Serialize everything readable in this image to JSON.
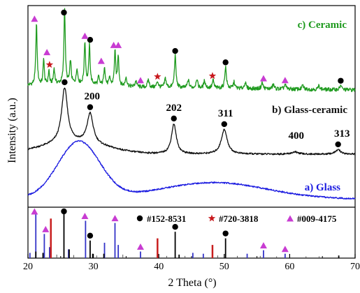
{
  "chart_data": {
    "type": "line",
    "xlabel": "2 Theta (°)",
    "ylabel": "Intensity (a.u.)",
    "xlim": [
      20,
      70
    ],
    "xticks": [
      20,
      30,
      40,
      50,
      60,
      70
    ],
    "colors": {
      "ceramic": "#1e9a1e",
      "glass_ceramic": "#111111",
      "glass": "#1b1be0",
      "phase_circle": "#000000",
      "phase_star": "#c8191e",
      "phase_triangle": "#c83cd2",
      "ref_blue": "#3434c8",
      "ref_red": "#c81e1e",
      "ref_gray": "#555555"
    },
    "series": [
      {
        "key": "ceramic",
        "name": "c) Ceramic",
        "profile": {
          "base_start": 0.06,
          "base_end": 0.01,
          "hump": {
            "center": 27,
            "width": 4.5,
            "height": 0.04
          },
          "peaks": [
            [
              21.3,
              0.8,
              0.12
            ],
            [
              22.4,
              0.35,
              0.1
            ],
            [
              23.2,
              0.18,
              0.1
            ],
            [
              24.0,
              0.2,
              0.12
            ],
            [
              25.6,
              1.0,
              0.12
            ],
            [
              26.5,
              0.3,
              0.12
            ],
            [
              27.5,
              0.2,
              0.12
            ],
            [
              28.7,
              0.55,
              0.12
            ],
            [
              29.4,
              0.5,
              0.12
            ],
            [
              30.8,
              0.1,
              0.12
            ],
            [
              31.7,
              0.25,
              0.12
            ],
            [
              32.5,
              0.1,
              0.12
            ],
            [
              33.3,
              0.45,
              0.12
            ],
            [
              33.8,
              0.4,
              0.12
            ],
            [
              35.0,
              0.12,
              0.15
            ],
            [
              36.5,
              0.08,
              0.15
            ],
            [
              38.4,
              0.1,
              0.15
            ],
            [
              39.8,
              0.08,
              0.15
            ],
            [
              41.0,
              0.12,
              0.15
            ],
            [
              42.5,
              0.42,
              0.14
            ],
            [
              44.5,
              0.1,
              0.15
            ],
            [
              45.8,
              0.12,
              0.15
            ],
            [
              47.0,
              0.1,
              0.15
            ],
            [
              48.3,
              0.1,
              0.15
            ],
            [
              50.2,
              0.28,
              0.15
            ],
            [
              51.5,
              0.08,
              0.15
            ],
            [
              53.2,
              0.08,
              0.15
            ],
            [
              55.8,
              0.08,
              0.15
            ],
            [
              57.5,
              0.06,
              0.15
            ],
            [
              59.3,
              0.06,
              0.15
            ],
            [
              62.0,
              0.05,
              0.15
            ],
            [
              64.5,
              0.05,
              0.15
            ],
            [
              67.8,
              0.06,
              0.15
            ]
          ],
          "scale": 110,
          "noise": 0.05
        },
        "markers": [
          {
            "x": 25.5,
            "type": "circle"
          },
          {
            "x": 29.5,
            "type": "circle"
          },
          {
            "x": 42.5,
            "type": "circle"
          },
          {
            "x": 50.2,
            "type": "circle"
          },
          {
            "x": 67.8,
            "type": "circle"
          },
          {
            "x": 21.0,
            "type": "triangle"
          },
          {
            "x": 22.9,
            "type": "triangle"
          },
          {
            "x": 28.7,
            "type": "triangle"
          },
          {
            "x": 31.2,
            "type": "triangle"
          },
          {
            "x": 33.1,
            "type": "triangle"
          },
          {
            "x": 33.8,
            "type": "triangle"
          },
          {
            "x": 37.2,
            "type": "triangle"
          },
          {
            "x": 56.0,
            "type": "triangle"
          },
          {
            "x": 59.3,
            "type": "triangle"
          },
          {
            "x": 23.3,
            "type": "star"
          },
          {
            "x": 39.8,
            "type": "star"
          },
          {
            "x": 48.2,
            "type": "star"
          }
        ]
      },
      {
        "key": "glass_ceramic",
        "name": "b) Glass-ceramic",
        "profile": {
          "base_start": 0.05,
          "base_end": 0.05,
          "hump": {
            "center": 27,
            "width": 5,
            "height": 0.22
          },
          "peaks": [
            [
              25.6,
              1.0,
              0.55
            ],
            [
              29.5,
              0.55,
              0.55
            ],
            [
              42.3,
              0.55,
              0.45
            ],
            [
              50.0,
              0.45,
              0.55
            ],
            [
              60.8,
              0.04,
              0.6
            ],
            [
              67.4,
              0.08,
              0.5
            ]
          ],
          "scale": 78,
          "noise": 0.03
        },
        "markers": [
          {
            "x": 25.6,
            "type": "circle"
          },
          {
            "x": 29.5,
            "type": "circle"
          },
          {
            "x": 42.3,
            "type": "circle"
          },
          {
            "x": 50.0,
            "type": "circle"
          },
          {
            "x": 67.4,
            "type": "circle"
          }
        ],
        "peak_labels": [
          {
            "x": 29.8,
            "text": "200"
          },
          {
            "x": 42.3,
            "text": "202"
          },
          {
            "x": 50.2,
            "text": "311"
          },
          {
            "x": 61.0,
            "text": "400"
          },
          {
            "x": 68.0,
            "text": "313"
          }
        ]
      },
      {
        "key": "glass",
        "name": "a) Glass",
        "profile": {
          "base_start": 0.04,
          "base_end": 0.02,
          "hump": {
            "center": 27.8,
            "width": 3.2,
            "height": 0.95
          },
          "hump2": {
            "center": 48.5,
            "width": 8,
            "height": 0.27
          },
          "peaks": [],
          "scale": 85,
          "noise": 0.025
        }
      }
    ],
    "reference_lines": {
      "circle_lines": [
        21.2,
        22.3,
        25.5,
        26.3,
        29.5,
        29.9,
        31.6,
        42.5,
        43.1,
        50.2,
        67.5
      ],
      "circle_heights": [
        0.15,
        0.12,
        1.0,
        0.2,
        0.4,
        0.1,
        0.1,
        0.6,
        0.08,
        0.45,
        0.06
      ],
      "blue_lines": [
        20.3,
        21.2,
        22.5,
        23.3,
        26.2,
        28.8,
        31.7,
        33.3,
        33.8,
        37.2,
        45.2,
        46.8,
        53.5,
        56.0,
        59.3
      ],
      "blue_heights": [
        0.12,
        1.0,
        0.55,
        0.25,
        0.2,
        0.85,
        0.35,
        0.8,
        0.3,
        0.15,
        0.12,
        0.1,
        0.1,
        0.18,
        0.1
      ],
      "red_lines": [
        23.5,
        39.8,
        48.2
      ],
      "red_heights": [
        0.9,
        0.45,
        0.3
      ],
      "gray_lines": [
        24.4,
        27.0,
        30.5,
        34.5,
        41.2,
        44.0,
        49.0,
        52.0,
        55.5,
        58.0,
        62.5,
        64.5
      ],
      "gray_heights": [
        0.08,
        0.07,
        0.06,
        0.08,
        0.05,
        0.05,
        0.06,
        0.05,
        0.05,
        0.04,
        0.04,
        0.04
      ],
      "markers": [
        {
          "x": 25.5,
          "type": "circle"
        },
        {
          "x": 29.5,
          "type": "circle"
        },
        {
          "x": 42.5,
          "type": "circle"
        },
        {
          "x": 50.2,
          "type": "circle"
        },
        {
          "x": 21.0,
          "type": "triangle"
        },
        {
          "x": 22.7,
          "type": "triangle"
        },
        {
          "x": 28.7,
          "type": "triangle"
        },
        {
          "x": 33.3,
          "type": "triangle"
        },
        {
          "x": 37.2,
          "type": "triangle"
        },
        {
          "x": 56.0,
          "type": "triangle"
        },
        {
          "x": 59.3,
          "type": "triangle"
        }
      ],
      "legend": [
        {
          "type": "circle",
          "label": "#152-8531"
        },
        {
          "type": "star",
          "label": "#720-3818"
        },
        {
          "type": "triangle",
          "label": "#009-4175"
        }
      ]
    }
  }
}
